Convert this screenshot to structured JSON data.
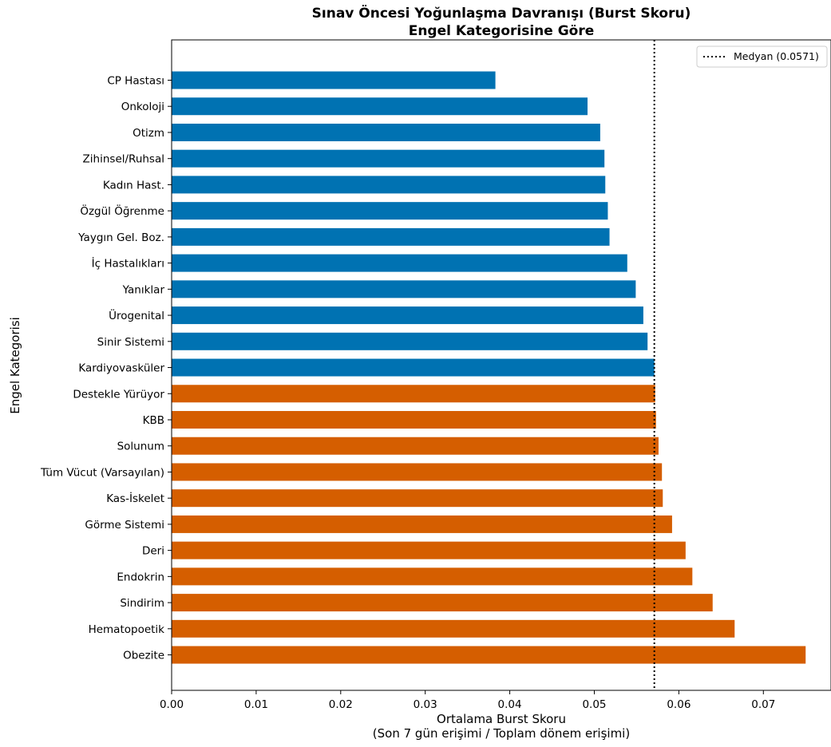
{
  "chart_data": {
    "type": "bar",
    "orientation": "horizontal",
    "title": "Sınav Öncesi Yoğunlaşma Davranışı (Burst Skoru)",
    "subtitle": "Engel Kategorisine Göre",
    "xlabel": "Ortalama Burst Skoru",
    "xlabel_line2": "(Son 7 gün erişimi / Toplam dönem erişimi)",
    "ylabel": "Engel Kategorisi",
    "xlim": [
      0,
      0.078
    ],
    "xticks": [
      "0.00",
      "0.01",
      "0.02",
      "0.03",
      "0.04",
      "0.05",
      "0.06",
      "0.07"
    ],
    "grid": false,
    "legend_position": "top-right",
    "median": {
      "value": 0.0571,
      "label": "Medyan (0.0571)",
      "style": "dotted",
      "color": "#000000"
    },
    "colors": {
      "below_median": "#0072B2",
      "above_median": "#D55E00"
    },
    "categories": [
      "CP Hastası",
      "Onkoloji",
      "Otizm",
      "Zihinsel/Ruhsal",
      "Kadın Hast.",
      "Özgül Öğrenme",
      "Yaygın Gel. Boz.",
      "İç Hastalıkları",
      "Yanıklar",
      "Ürogenital",
      "Sinir Sistemi",
      "Kardiyovasküler",
      "Destekle Yürüyor",
      "KBB",
      "Solunum",
      "Tüm Vücut (Varsayılan)",
      "Kas-İskelet",
      "Görme Sistemi",
      "Deri",
      "Endokrin",
      "Sindirim",
      "Hematopoetik",
      "Obezite"
    ],
    "values": [
      0.0383,
      0.0492,
      0.0507,
      0.0512,
      0.0513,
      0.0516,
      0.0518,
      0.0539,
      0.0549,
      0.0558,
      0.0563,
      0.0571,
      0.0572,
      0.0573,
      0.0576,
      0.058,
      0.0581,
      0.0592,
      0.0608,
      0.0616,
      0.064,
      0.0666,
      0.075
    ],
    "groups": [
      "below",
      "below",
      "below",
      "below",
      "below",
      "below",
      "below",
      "below",
      "below",
      "below",
      "below",
      "below",
      "above",
      "above",
      "above",
      "above",
      "above",
      "above",
      "above",
      "above",
      "above",
      "above",
      "above"
    ]
  }
}
